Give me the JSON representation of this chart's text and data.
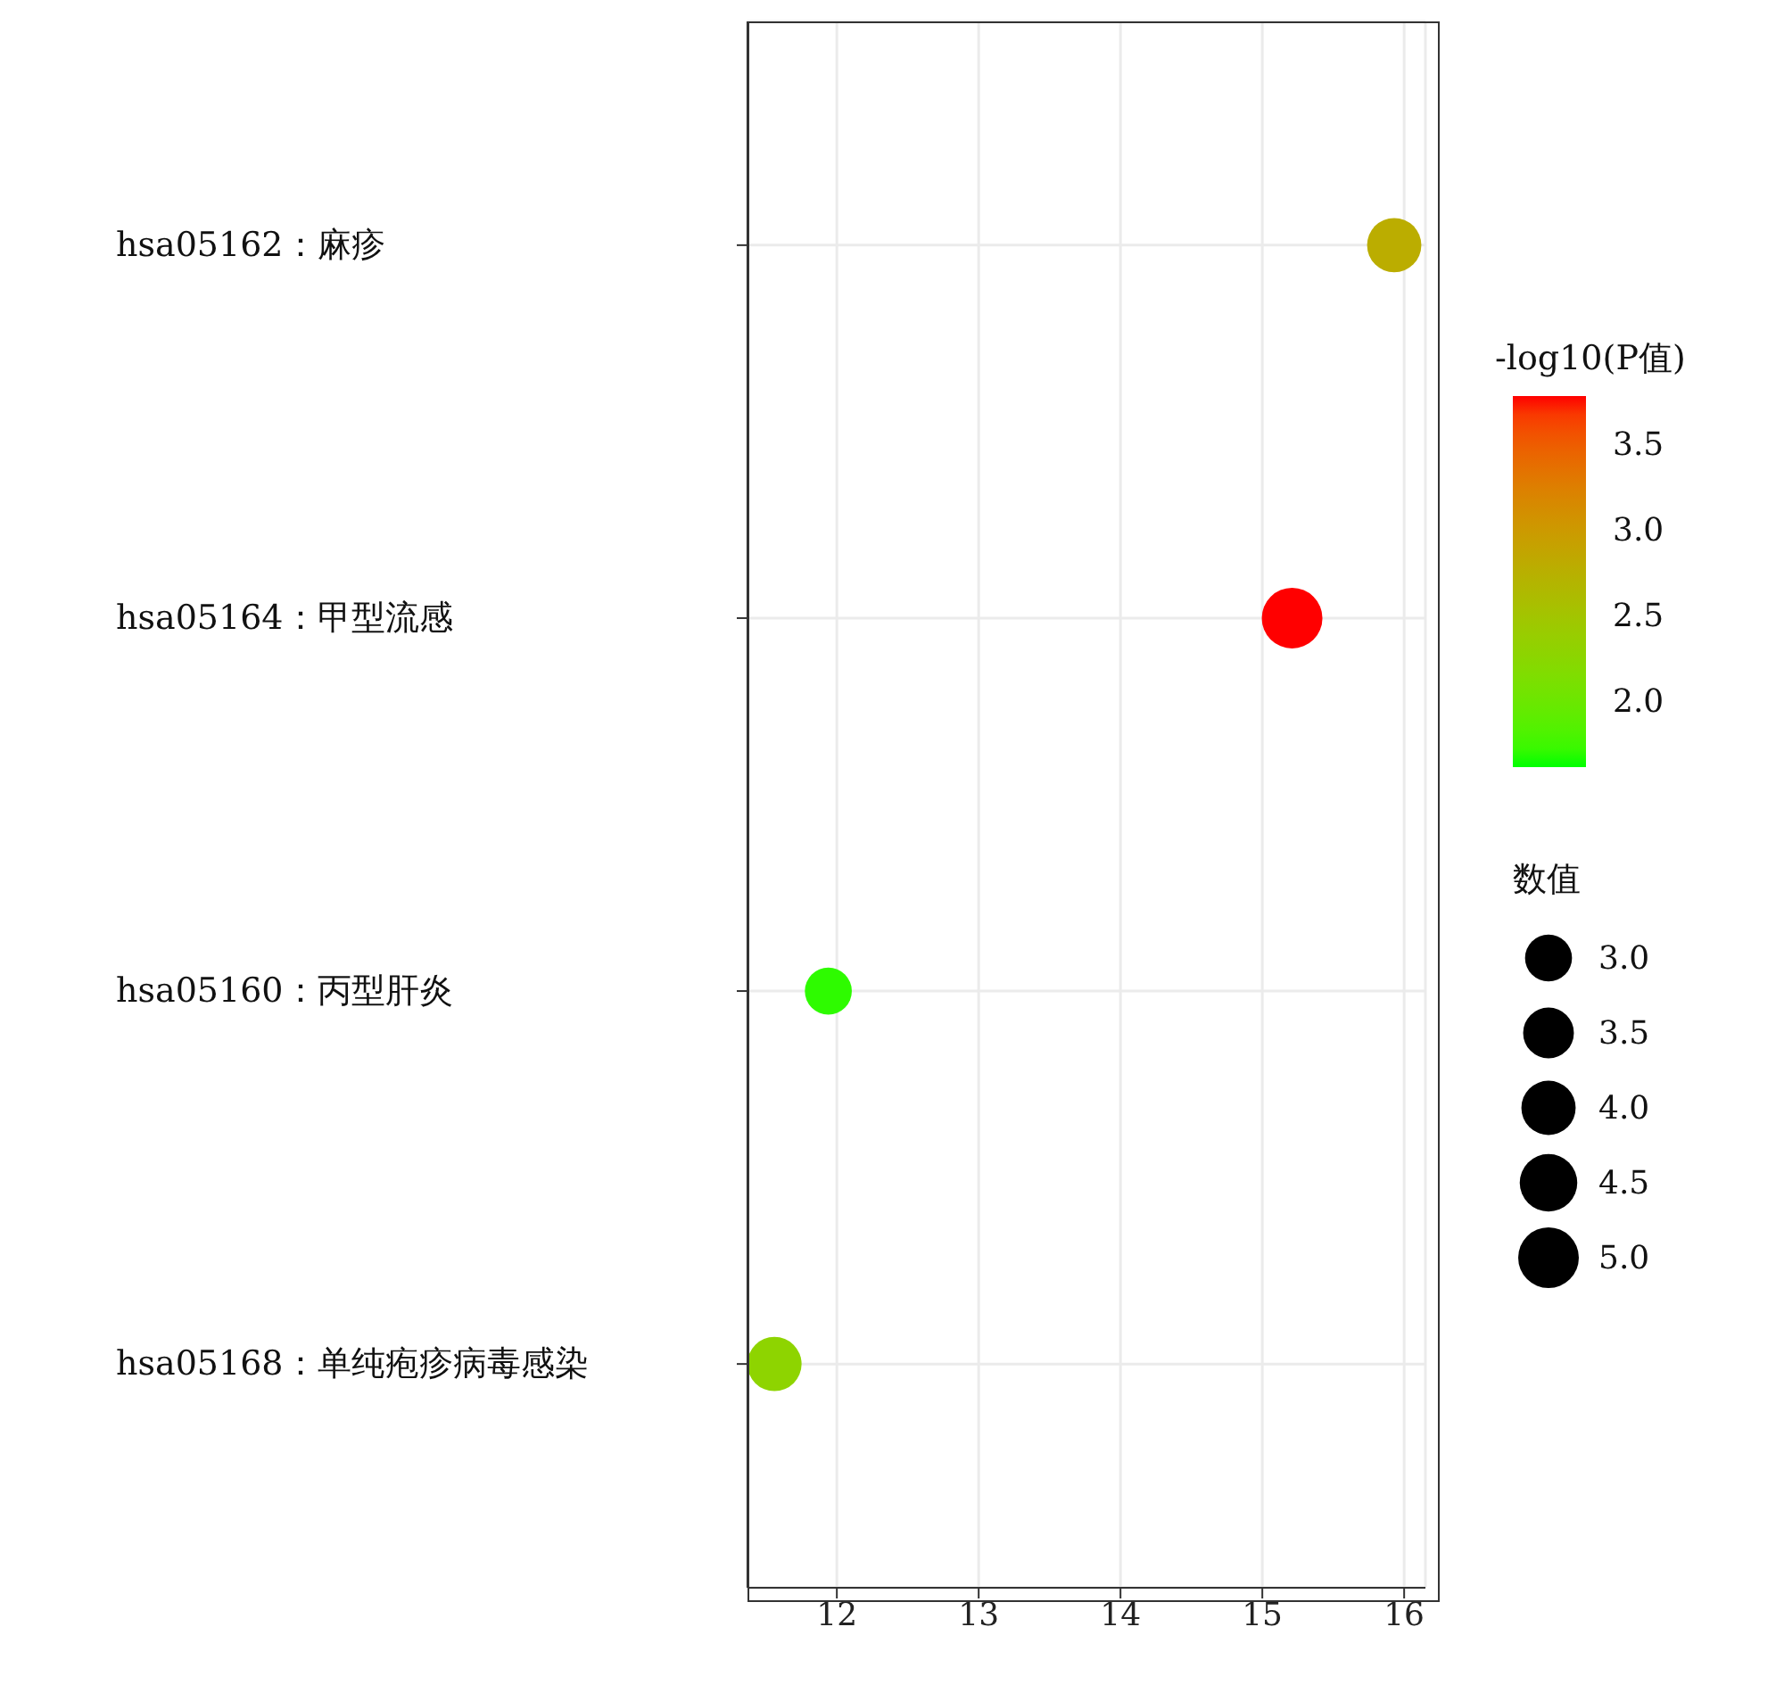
{
  "chart_data": {
    "type": "bubble",
    "orientation": "horizontal",
    "categories": [
      "hsa05162：麻疹",
      "hsa05164：甲型流感",
      "hsa05160：丙型肝炎",
      "hsa05168：单纯疱疹病毒感染"
    ],
    "values": [
      15.93,
      15.21,
      11.94,
      11.56
    ],
    "sizes": [
      4.0,
      5.0,
      3.0,
      4.0
    ],
    "size_legend": [
      {
        "value": 3,
        "label": "3.0"
      },
      {
        "value": 3.5,
        "label": "3.5"
      },
      {
        "value": 4,
        "label": "4.0"
      },
      {
        "value": 4.5,
        "label": "4.5"
      },
      {
        "value": 5,
        "label": "5.0"
      }
    ],
    "legend_title": "数值",
    "cvalues": [
      2.8,
      3.8,
      1.7,
      2.3
    ],
    "clim": [
      1.63,
      3.8
    ],
    "cticks": [
      {
        "value": 2,
        "label": "2.0"
      },
      {
        "value": 2.5,
        "label": "2.5"
      },
      {
        "value": 3,
        "label": "3.0"
      },
      {
        "value": 3.5,
        "label": "3.5"
      }
    ],
    "clabel": "-log10(P值)",
    "xlim": [
      11.37,
      16.15
    ],
    "xticks": [
      12,
      13,
      14,
      15,
      16
    ],
    "grid": true
  }
}
